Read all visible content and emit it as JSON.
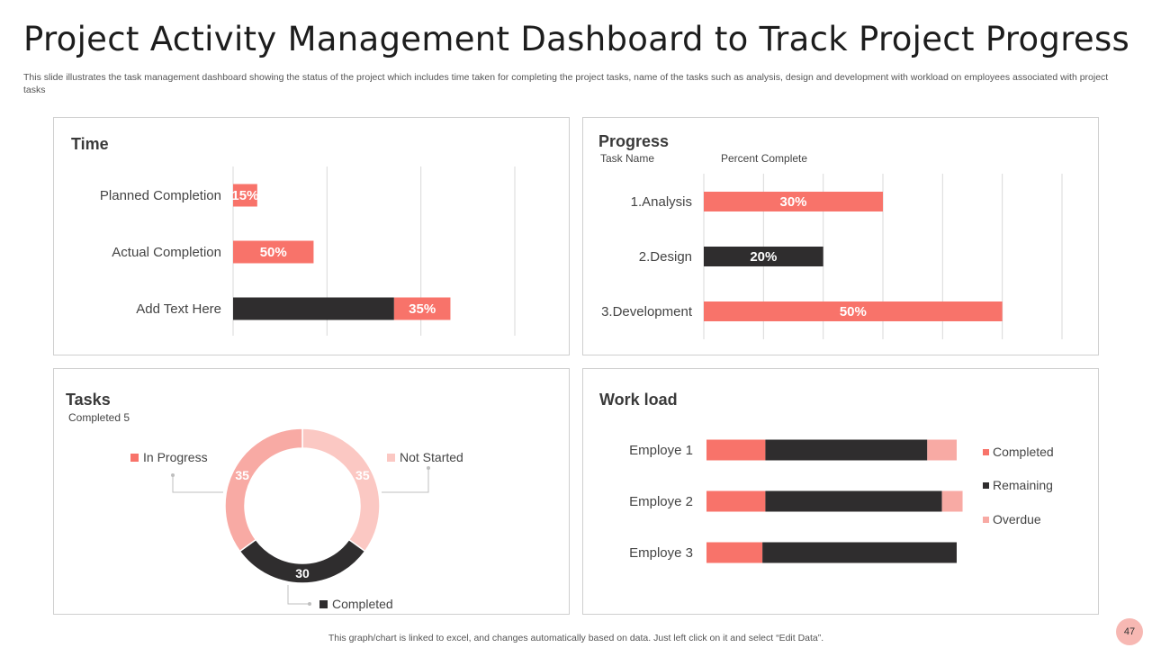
{
  "title": "Project Activity Management Dashboard to Track Project Progress",
  "subtitle": "This slide illustrates the task management dashboard showing the status of the project which includes time taken for completing the project tasks, name of the tasks such as analysis, design and development with workload on employees associated with project tasks",
  "footer": "This graph/chart is linked to excel, and changes automatically based on data. Just left click on it and select “Edit Data”.",
  "page_number": "47",
  "colors": {
    "salmon": "#f8736a",
    "dark": "#2f2d2e",
    "pink": "#f8aaa4",
    "light_pink": "#fbc8c3"
  },
  "panels": {
    "time": {
      "title": "Time"
    },
    "progress": {
      "title": "Progress",
      "col1": "Task Name",
      "col2": "Percent Complete"
    },
    "tasks": {
      "title": "Tasks",
      "completed_note": "Completed  5"
    },
    "workload": {
      "title": "Work load"
    }
  },
  "chart_data": [
    {
      "id": "time",
      "type": "bar",
      "orientation": "horizontal",
      "stacked": true,
      "categories": [
        "Planned Completion",
        "Actual Completion",
        "Add Text Here"
      ],
      "series": [
        {
          "values": [
            0,
            0,
            100
          ],
          "color": "#2f2d2e",
          "labels": [
            "",
            "",
            ""
          ]
        },
        {
          "values": [
            15,
            50,
            35
          ],
          "color": "#f8736a",
          "labels": [
            "15%",
            "50%",
            "35%"
          ]
        }
      ],
      "xlim": [
        0,
        175
      ]
    },
    {
      "id": "progress",
      "type": "bar",
      "orientation": "horizontal",
      "categories": [
        "1.Analysis",
        "2.Design",
        "3.Development"
      ],
      "values": [
        30,
        20,
        50
      ],
      "labels": [
        "30%",
        "20%",
        "50%"
      ],
      "colors": [
        "#f8736a",
        "#2f2d2e",
        "#f8736a"
      ],
      "xlim": [
        0,
        60
      ]
    },
    {
      "id": "tasks",
      "type": "pie",
      "donut": true,
      "slices": [
        {
          "label": "Not Started",
          "value": 35,
          "color": "#fbc8c3",
          "text": "35"
        },
        {
          "label": "Completed",
          "value": 30,
          "color": "#2f2d2e",
          "text": "30"
        },
        {
          "label": "In Progress",
          "value": 35,
          "color": "#f8aaa4",
          "text": "35"
        }
      ]
    },
    {
      "id": "workload",
      "type": "bar",
      "orientation": "horizontal",
      "stacked": true,
      "categories": [
        "Employe 1",
        "Employe 2",
        "Employe 3"
      ],
      "series": [
        {
          "name": "Completed",
          "values": [
            20,
            20,
            19
          ],
          "color": "#f8736a"
        },
        {
          "name": "Remaining",
          "values": [
            55,
            60,
            66
          ],
          "color": "#2f2d2e"
        },
        {
          "name": "Overdue",
          "values": [
            10,
            7,
            0
          ],
          "color": "#f8aaa4"
        }
      ],
      "xlim": [
        0,
        85
      ]
    }
  ]
}
